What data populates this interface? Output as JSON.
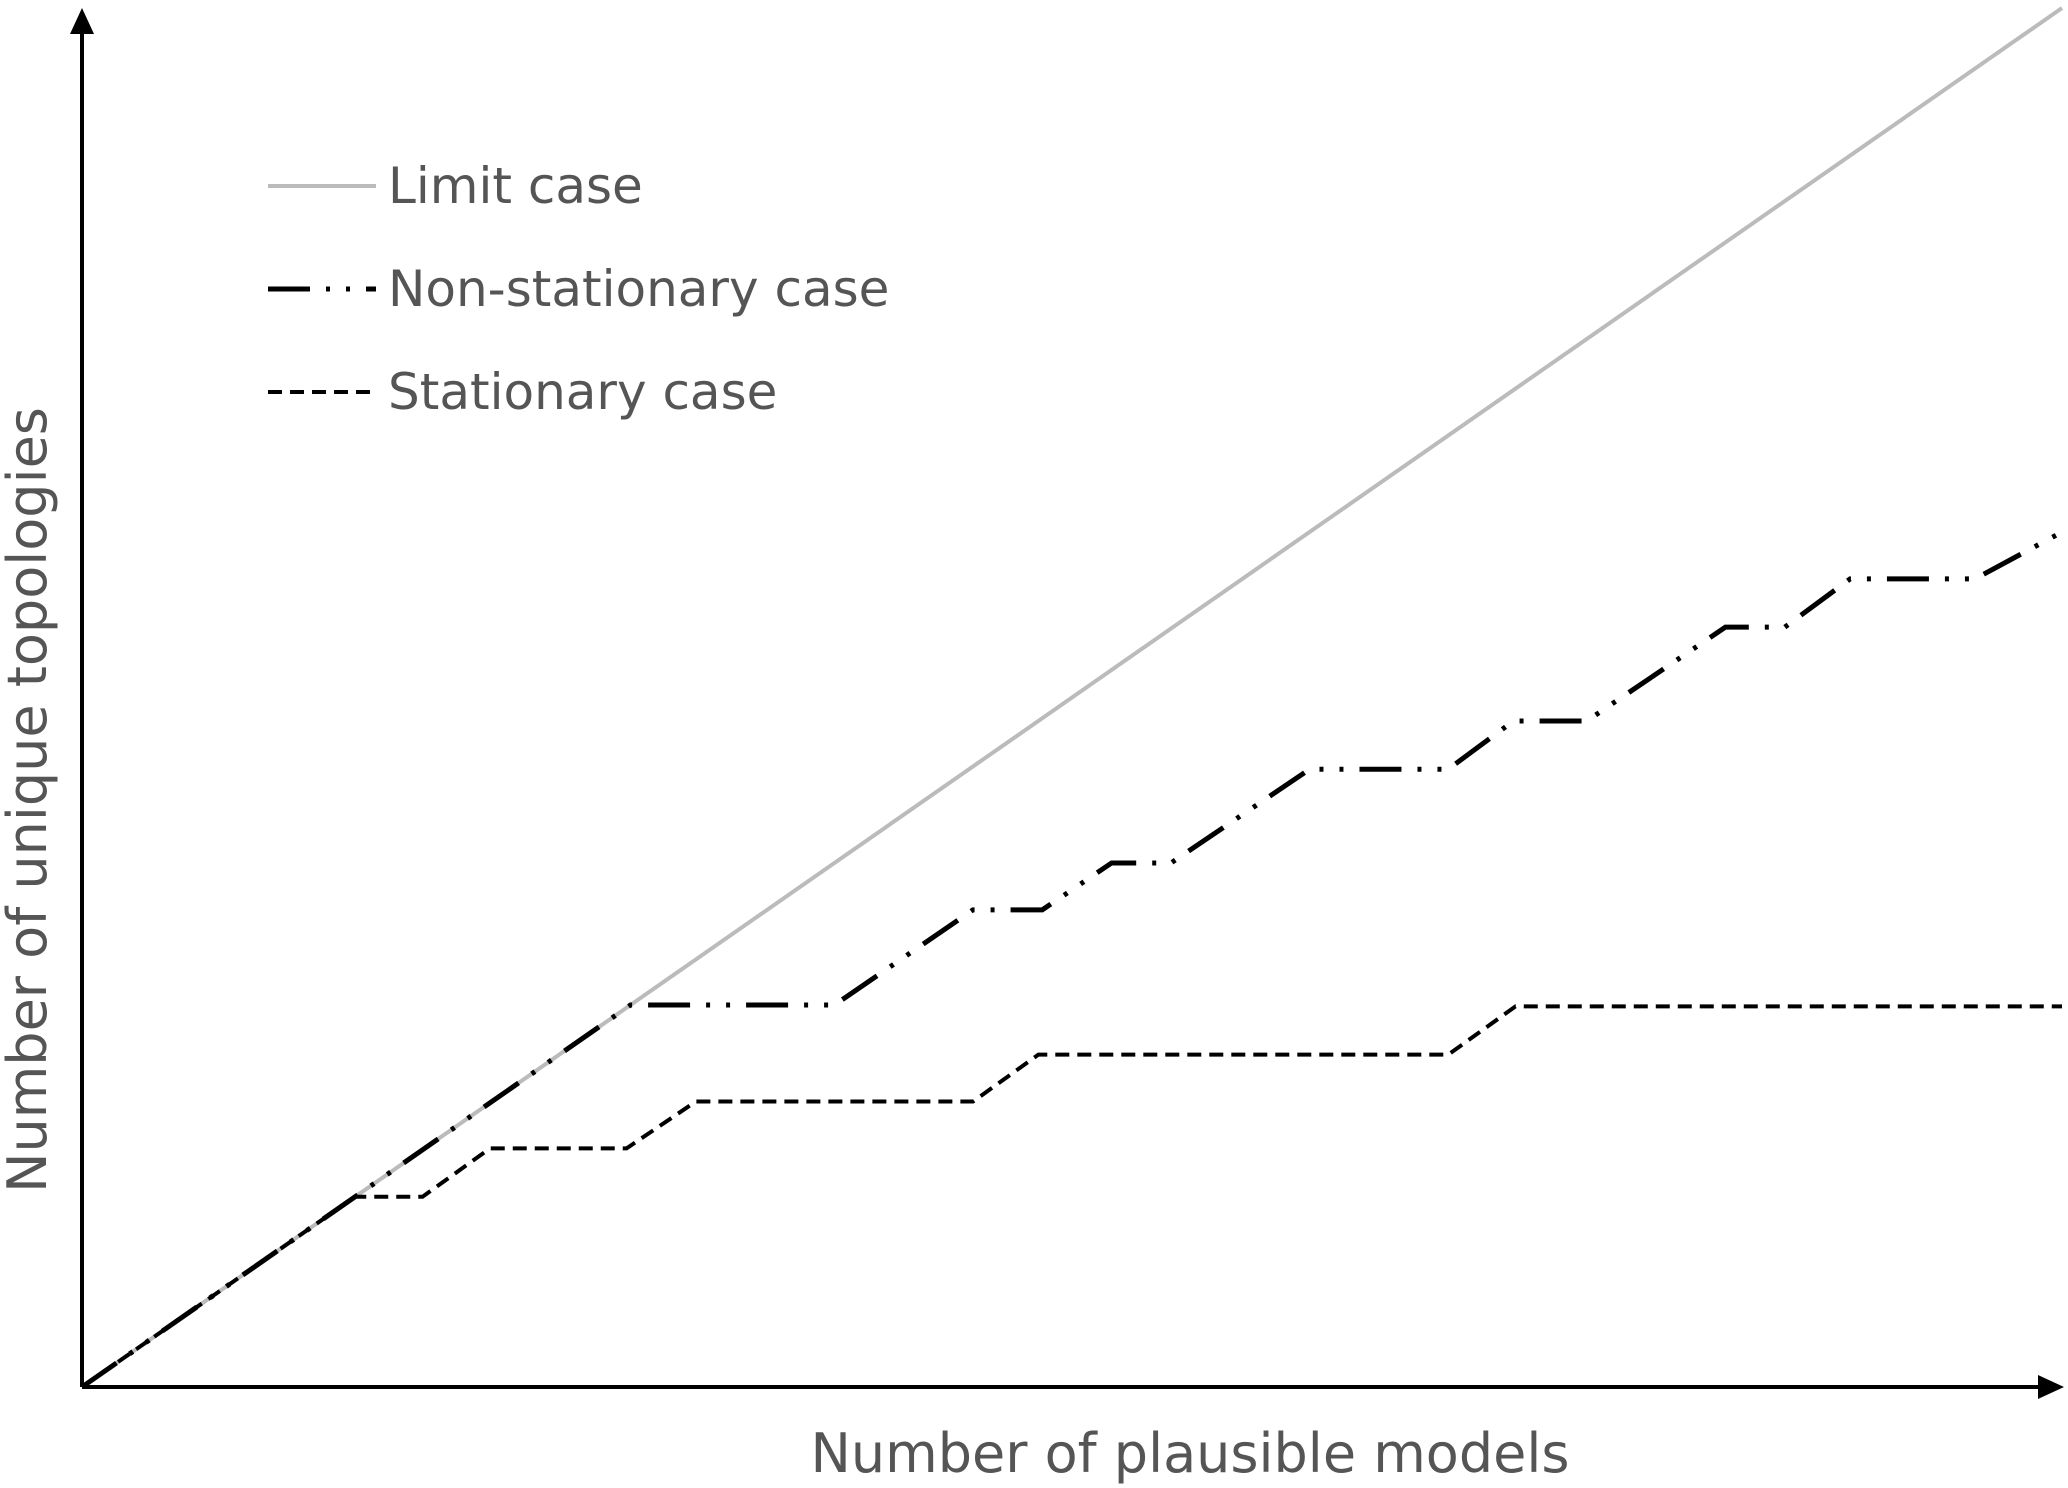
{
  "chart_data": {
    "type": "line",
    "title": "",
    "xlabel": "Number of plausible models",
    "ylabel": "Number of unique topologies",
    "xlim": [
      0,
      100
    ],
    "ylim": [
      0,
      100
    ],
    "grid": false,
    "legend_position": "top-left",
    "series": [
      {
        "name": "Limit case",
        "style": "solid",
        "color": "#bbbbbb",
        "points": [
          [
            0,
            0
          ],
          [
            100,
            100
          ]
        ]
      },
      {
        "name": "Non-stationary case",
        "style": "dash-dot-dot",
        "color": "#000000",
        "points": [
          [
            0,
            0
          ],
          [
            27.7,
            27.7
          ],
          [
            38,
            27.7
          ],
          [
            45,
            34.6
          ],
          [
            48.5,
            34.6
          ],
          [
            52,
            38
          ],
          [
            55,
            38
          ],
          [
            62,
            44.8
          ],
          [
            69,
            44.8
          ],
          [
            72.3,
            48.3
          ],
          [
            76,
            48.3
          ],
          [
            83,
            55.1
          ],
          [
            86,
            55.1
          ],
          [
            89.3,
            58.6
          ],
          [
            95.6,
            58.6
          ],
          [
            100,
            62
          ]
        ]
      },
      {
        "name": "Stationary case",
        "style": "dashed",
        "color": "#000000",
        "points": [
          [
            0,
            0
          ],
          [
            13.8,
            13.8
          ],
          [
            17.2,
            13.8
          ],
          [
            20.6,
            17.3
          ],
          [
            27.5,
            17.3
          ],
          [
            31,
            20.7
          ],
          [
            45,
            20.7
          ],
          [
            48.3,
            24.1
          ],
          [
            69,
            24.1
          ],
          [
            72.4,
            27.6
          ],
          [
            100,
            27.6
          ]
        ]
      }
    ]
  }
}
